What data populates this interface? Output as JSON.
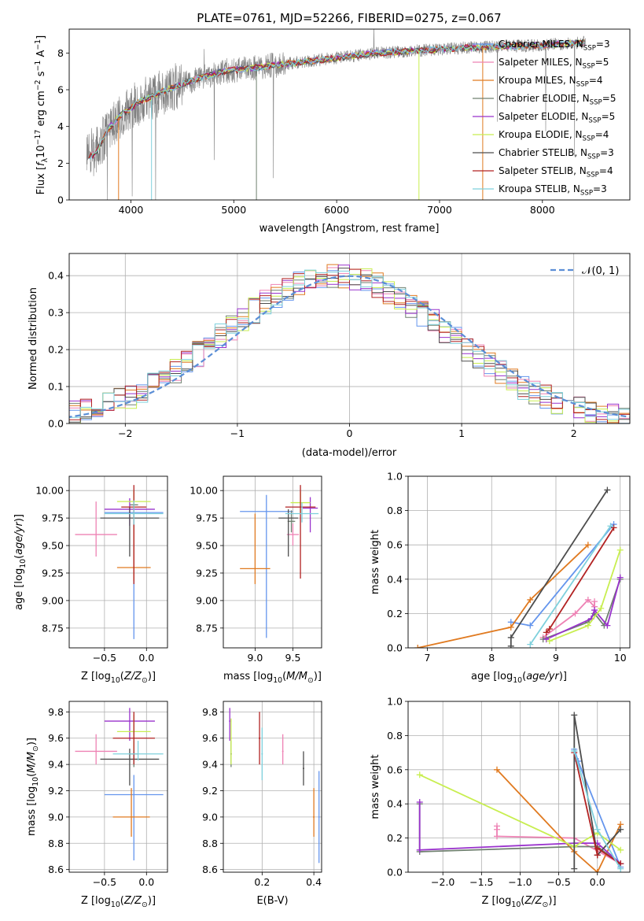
{
  "colors": {
    "Chabrier MILES": "#6495ed",
    "Salpeter MILES": "#ee82b4",
    "Kroupa MILES": "#e07a20",
    "Chabrier ELODIE": "#708070",
    "Salpeter ELODIE": "#9932cc",
    "Kroupa ELODIE": "#c8ee50",
    "Chabrier STELIB": "#4d4d4d",
    "Salpeter STELIB": "#b22222",
    "Kroupa STELIB": "#7ed0dc",
    "normal": "#5b8ed6"
  },
  "chart_data": [
    {
      "id": "spectrum",
      "type": "line",
      "title": "PLATE=0761, MJD=52266, FIBERID=0275, z=0.067",
      "xlabel": "wavelength [Angstrom, rest frame]",
      "ylabel": "Flux [f_λ 10^-17 erg cm^-2 s^-1 A^-1]",
      "xlim": [
        3400,
        8850
      ],
      "ylim": [
        0,
        9.3
      ],
      "xticks": [
        4000,
        5000,
        6000,
        7000,
        8000
      ],
      "yticks": [
        0,
        2,
        4,
        6,
        8
      ],
      "grid": false,
      "legend_position": "upper right",
      "data_color": "#808080",
      "continuum": {
        "x": [
          3580,
          3650,
          3700,
          3800,
          3900,
          4000,
          4100,
          4200,
          4300,
          4500,
          4700,
          4900,
          5200,
          5500,
          5800,
          6100,
          6400,
          6700,
          7000,
          7300,
          7600,
          7900,
          8200,
          8500
        ],
        "y": [
          2.3,
          2.5,
          3.0,
          4.0,
          4.6,
          5.0,
          5.4,
          5.6,
          5.9,
          6.3,
          6.7,
          7.0,
          7.2,
          7.4,
          7.6,
          7.8,
          8.0,
          8.1,
          8.2,
          8.3,
          8.35,
          8.4,
          8.5,
          8.6
        ]
      },
      "series": [
        {
          "name": "Chabrier MILES",
          "n_ssp": "3"
        },
        {
          "name": "Salpeter MILES",
          "n_ssp": "5"
        },
        {
          "name": "Kroupa MILES",
          "n_ssp": "4"
        },
        {
          "name": "Chabrier ELODIE",
          "n_ssp": "5"
        },
        {
          "name": "Salpeter ELODIE",
          "n_ssp": "5"
        },
        {
          "name": "Kroupa ELODIE",
          "n_ssp": "4"
        },
        {
          "name": "Chabrier STELIB",
          "n_ssp": "3"
        },
        {
          "name": "Salpeter STELIB",
          "n_ssp": "4"
        },
        {
          "name": "Kroupa STELIB",
          "n_ssp": "3"
        }
      ]
    },
    {
      "id": "residuals",
      "type": "line",
      "xlabel": "(data-model)/error",
      "ylabel": "Normed distribution",
      "xlim": [
        -2.5,
        2.5
      ],
      "ylim": [
        0,
        0.46
      ],
      "xticks": [
        -2,
        -1,
        0,
        1,
        2
      ],
      "yticks": [
        0.0,
        0.1,
        0.2,
        0.3,
        0.4
      ],
      "grid": true,
      "legend_position": "upper right",
      "legend_label": "𝒩(0, 1)",
      "bin_width": 0.1
    },
    {
      "id": "age-vs-Z",
      "type": "scatter",
      "xlabel": "Z [log10(Z/Z⊙)]",
      "ylabel": "age  [log10(age/yr)]",
      "xlim": [
        -0.92,
        0.25
      ],
      "ylim": [
        8.57,
        10.13
      ],
      "xticks": [
        -0.5,
        0.0
      ],
      "yticks": [
        8.75,
        9.0,
        9.25,
        9.5,
        9.75,
        10.0
      ],
      "grid": true,
      "points": [
        {
          "series": "Chabrier MILES",
          "x": -0.15,
          "y": 9.8,
          "xerr": 0.35,
          "yerr": [
            1.15,
            0.15
          ]
        },
        {
          "series": "Salpeter MILES",
          "x": -0.6,
          "y": 9.6,
          "xerr": 0.25,
          "yerr": [
            0.2,
            0.3
          ]
        },
        {
          "series": "Kroupa MILES",
          "x": -0.15,
          "y": 9.3,
          "xerr": 0.2,
          "yerr": [
            0.12,
            0.7
          ]
        },
        {
          "series": "Chabrier ELODIE",
          "x": -0.15,
          "y": 9.87,
          "xerr": 0.05,
          "yerr": [
            0.2,
            0.1
          ]
        },
        {
          "series": "Salpeter ELODIE",
          "x": -0.2,
          "y": 9.83,
          "xerr": 0.3,
          "yerr": [
            0.15,
            0.1
          ]
        },
        {
          "series": "Kroupa ELODIE",
          "x": -0.15,
          "y": 9.9,
          "xerr": 0.2,
          "yerr": [
            0.1,
            0.1
          ]
        },
        {
          "series": "Chabrier STELIB",
          "x": -0.2,
          "y": 9.75,
          "xerr": 0.35,
          "yerr": [
            0.35,
            0.1
          ]
        },
        {
          "series": "Salpeter STELIB",
          "x": -0.15,
          "y": 9.85,
          "xerr": 0.15,
          "yerr": [
            0.7,
            0.2
          ]
        },
        {
          "series": "Kroupa STELIB",
          "x": -0.15,
          "y": 9.79,
          "xerr": 0.35,
          "yerr": [
            0.1,
            0.12
          ]
        }
      ]
    },
    {
      "id": "age-vs-mass",
      "type": "scatter",
      "xlabel": "mass [log10(M/M⊙)]",
      "xlim": [
        8.58,
        9.88
      ],
      "ylim": [
        8.57,
        10.13
      ],
      "xticks": [
        9.0,
        9.5
      ],
      "yticks": [
        8.75,
        9.0,
        9.25,
        9.5,
        9.75,
        10.0
      ],
      "grid": true,
      "points": [
        {
          "series": "Chabrier MILES",
          "x": 9.15,
          "y": 9.81,
          "xerr": 0.35,
          "yerr": [
            1.15,
            0.15
          ]
        },
        {
          "series": "Salpeter MILES",
          "x": 9.5,
          "y": 9.6,
          "xerr": 0.08,
          "yerr": [
            0.1,
            0.1
          ]
        },
        {
          "series": "Kroupa MILES",
          "x": 9.0,
          "y": 9.29,
          "xerr": 0.2,
          "yerr": [
            0.14,
            0.5
          ]
        },
        {
          "series": "Chabrier ELODIE",
          "x": 9.48,
          "y": 9.72,
          "xerr": 0.05,
          "yerr": [
            0.1,
            0.1
          ]
        },
        {
          "series": "Salpeter ELODIE",
          "x": 9.73,
          "y": 9.84,
          "xerr": 0.1,
          "yerr": [
            0.22,
            0.1
          ]
        },
        {
          "series": "Kroupa ELODIE",
          "x": 9.6,
          "y": 9.89,
          "xerr": 0.13,
          "yerr": [
            0.1,
            0.1
          ]
        },
        {
          "series": "Chabrier STELIB",
          "x": 9.44,
          "y": 9.75,
          "xerr": 0.13,
          "yerr": [
            0.35,
            0.08
          ]
        },
        {
          "series": "Salpeter STELIB",
          "x": 9.6,
          "y": 9.85,
          "xerr": 0.2,
          "yerr": [
            0.65,
            0.2
          ]
        },
        {
          "series": "Kroupa STELIB",
          "x": 9.62,
          "y": 9.79,
          "xerr": 0.22,
          "yerr": [
            0.08,
            0.1
          ]
        }
      ]
    },
    {
      "id": "weight-vs-age",
      "type": "line",
      "xlabel": "age  [log10(age/yr)]",
      "ylabel": "mass weight",
      "xlim": [
        6.7,
        10.15
      ],
      "ylim": [
        0,
        1.0
      ],
      "xticks": [
        7,
        8,
        9,
        10
      ],
      "yticks": [
        0.0,
        0.2,
        0.4,
        0.6,
        0.8,
        1.0
      ],
      "grid": true,
      "series": [
        {
          "name": "Chabrier MILES",
          "x": [
            8.3,
            8.6,
            9.9
          ],
          "y": [
            0.15,
            0.13,
            0.72
          ]
        },
        {
          "name": "Salpeter MILES",
          "x": [
            8.8,
            9.3,
            9.5,
            9.6,
            9.6
          ],
          "y": [
            0.06,
            0.2,
            0.28,
            0.24,
            0.27
          ]
        },
        {
          "name": "Kroupa MILES",
          "x": [
            6.85,
            8.3,
            8.6,
            9.5
          ],
          "y": [
            0.0,
            0.12,
            0.28,
            0.6
          ]
        },
        {
          "name": "Chabrier ELODIE",
          "x": [
            8.8,
            9.5,
            9.6,
            9.75,
            10.0
          ],
          "y": [
            0.05,
            0.15,
            0.2,
            0.13,
            0.4
          ]
        },
        {
          "name": "Salpeter ELODIE",
          "x": [
            8.85,
            9.55,
            9.6,
            9.8,
            10.0
          ],
          "y": [
            0.05,
            0.17,
            0.22,
            0.13,
            0.41
          ]
        },
        {
          "name": "Kroupa ELODIE",
          "x": [
            8.9,
            9.5,
            9.7,
            10.0
          ],
          "y": [
            0.04,
            0.13,
            0.23,
            0.57
          ]
        },
        {
          "name": "Chabrier STELIB",
          "x": [
            8.3,
            8.3,
            9.8
          ],
          "y": [
            0.01,
            0.06,
            0.92
          ]
        },
        {
          "name": "Salpeter STELIB",
          "x": [
            8.85,
            8.9,
            9.9
          ],
          "y": [
            0.09,
            0.11,
            0.7
          ]
        },
        {
          "name": "Kroupa STELIB",
          "x": [
            8.6,
            9.85
          ],
          "y": [
            0.02,
            0.71
          ]
        }
      ]
    },
    {
      "id": "mass-vs-Z",
      "type": "scatter",
      "xlabel": "Z [log10(Z/Z⊙)]",
      "ylabel": "mass [log10(M/M⊙)]",
      "xlim": [
        -0.92,
        0.25
      ],
      "ylim": [
        8.58,
        9.88
      ],
      "xticks": [
        -0.5,
        0.0
      ],
      "yticks": [
        8.6,
        8.8,
        9.0,
        9.2,
        9.4,
        9.6,
        9.8
      ],
      "grid": true,
      "points": [
        {
          "series": "Chabrier MILES",
          "x": -0.15,
          "y": 9.17,
          "xerr": 0.35,
          "yerr": [
            0.5,
            0.15
          ]
        },
        {
          "series": "Salpeter MILES",
          "x": -0.6,
          "y": 9.5,
          "xerr": 0.25,
          "yerr": [
            0.1,
            0.13
          ]
        },
        {
          "series": "Kroupa MILES",
          "x": -0.18,
          "y": 9.0,
          "xerr": 0.22,
          "yerr": [
            0.15,
            0.22
          ]
        },
        {
          "series": "Chabrier ELODIE",
          "x": -0.15,
          "y": 9.48,
          "xerr": 0.05,
          "yerr": [
            0.1,
            0.1
          ]
        },
        {
          "series": "Salpeter ELODIE",
          "x": -0.2,
          "y": 9.73,
          "xerr": 0.3,
          "yerr": [
            0.15,
            0.1
          ]
        },
        {
          "series": "Kroupa ELODIE",
          "x": -0.15,
          "y": 9.65,
          "xerr": 0.2,
          "yerr": [
            0.15,
            0.13
          ]
        },
        {
          "series": "Chabrier STELIB",
          "x": -0.2,
          "y": 9.44,
          "xerr": 0.35,
          "yerr": [
            0.2,
            0.08
          ]
        },
        {
          "series": "Salpeter STELIB",
          "x": -0.15,
          "y": 9.6,
          "xerr": 0.25,
          "yerr": [
            0.2,
            0.2
          ]
        },
        {
          "series": "Kroupa STELIB",
          "x": -0.1,
          "y": 9.48,
          "xerr": 0.3,
          "yerr": [
            0.05,
            0.1
          ]
        }
      ]
    },
    {
      "id": "mass-vs-EBV",
      "type": "scatter",
      "xlabel": "E(B-V)",
      "xlim": [
        0.05,
        0.43
      ],
      "ylim": [
        8.58,
        9.88
      ],
      "xticks": [
        0.2,
        0.4
      ],
      "yticks": [
        8.6,
        8.8,
        9.0,
        9.2,
        9.4,
        9.6,
        9.8
      ],
      "grid": true,
      "points": [
        {
          "series": "Chabrier MILES",
          "x": 0.42,
          "y": 9.0,
          "xerr": 0.003,
          "yerr": [
            0.35,
            0.35
          ]
        },
        {
          "series": "Salpeter MILES",
          "x": 0.28,
          "y": 9.5,
          "xerr": 0.003,
          "yerr": [
            0.1,
            0.13
          ]
        },
        {
          "series": "Kroupa MILES",
          "x": 0.4,
          "y": 9.0,
          "xerr": 0.003,
          "yerr": [
            0.15,
            0.22
          ]
        },
        {
          "series": "Chabrier ELODIE",
          "x": 0.08,
          "y": 9.48,
          "xerr": 0.003,
          "yerr": [
            0.1,
            0.1
          ]
        },
        {
          "series": "Salpeter ELODIE",
          "x": 0.075,
          "y": 9.73,
          "xerr": 0.003,
          "yerr": [
            0.15,
            0.1
          ]
        },
        {
          "series": "Kroupa ELODIE",
          "x": 0.08,
          "y": 9.6,
          "xerr": 0.003,
          "yerr": [
            0.2,
            0.15
          ]
        },
        {
          "series": "Chabrier STELIB",
          "x": 0.36,
          "y": 9.37,
          "xerr": 0.003,
          "yerr": [
            0.13,
            0.13
          ]
        },
        {
          "series": "Salpeter STELIB",
          "x": 0.19,
          "y": 9.6,
          "xerr": 0.003,
          "yerr": [
            0.2,
            0.2
          ]
        },
        {
          "series": "Kroupa STELIB",
          "x": 0.2,
          "y": 9.48,
          "xerr": 0.003,
          "yerr": [
            0.2,
            0.2
          ]
        }
      ]
    },
    {
      "id": "weight-vs-Z",
      "type": "line",
      "xlabel": "Z [log10(Z/Z⊙)]",
      "ylabel": "mass weight",
      "xlim": [
        -2.45,
        0.42
      ],
      "ylim": [
        0,
        1.0
      ],
      "xticks": [
        -2.0,
        -1.5,
        -1.0,
        -0.5,
        0.0
      ],
      "yticks": [
        0.0,
        0.2,
        0.4,
        0.6,
        0.8,
        1.0
      ],
      "grid": true,
      "series": [
        {
          "name": "Chabrier MILES",
          "x": [
            -0.3,
            -0.25,
            0.3
          ],
          "y": [
            0.72,
            0.65,
            0.03
          ]
        },
        {
          "name": "Salpeter MILES",
          "x": [
            -1.3,
            -1.3,
            -1.3,
            -0.3,
            0.3
          ],
          "y": [
            0.25,
            0.27,
            0.21,
            0.2,
            0.05
          ]
        },
        {
          "name": "Kroupa MILES",
          "x": [
            -1.3,
            -0.3,
            0.0,
            0.3
          ],
          "y": [
            0.6,
            0.12,
            0.0,
            0.28
          ]
        },
        {
          "name": "Chabrier ELODIE",
          "x": [
            -2.3,
            -2.3,
            -0.3,
            0.0,
            0.3
          ],
          "y": [
            0.4,
            0.12,
            0.15,
            0.15,
            0.05
          ]
        },
        {
          "name": "Salpeter ELODIE",
          "x": [
            -2.3,
            -2.3,
            -0.3,
            0.0,
            0.3
          ],
          "y": [
            0.41,
            0.13,
            0.17,
            0.17,
            0.05
          ]
        },
        {
          "name": "Kroupa ELODIE",
          "x": [
            -2.3,
            -0.3,
            0.0,
            0.3
          ],
          "y": [
            0.57,
            0.15,
            0.23,
            0.13
          ]
        },
        {
          "name": "Chabrier STELIB",
          "x": [
            -0.3,
            -0.3,
            0.0,
            0.3
          ],
          "y": [
            0.02,
            0.92,
            0.1,
            0.25
          ]
        },
        {
          "name": "Salpeter STELIB",
          "x": [
            -0.3,
            0.0,
            0.0,
            0.3
          ],
          "y": [
            0.7,
            0.1,
            0.14,
            0.05
          ]
        },
        {
          "name": "Kroupa STELIB",
          "x": [
            -0.3,
            0.0,
            0.3
          ],
          "y": [
            0.71,
            0.25,
            0.02
          ]
        }
      ]
    }
  ]
}
